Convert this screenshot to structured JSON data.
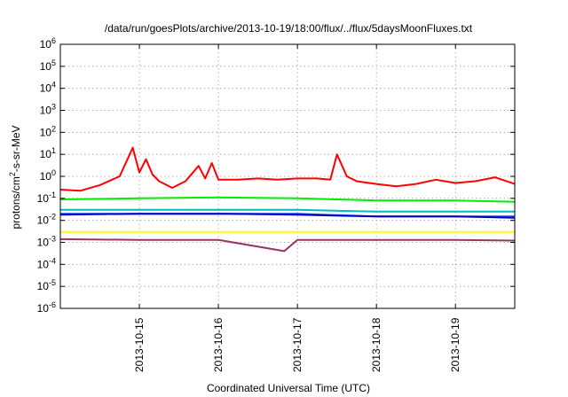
{
  "chart_data": {
    "type": "line",
    "title": "/data/run/goesPlots/archive/2013-10-19/18:00/flux/../flux/5daysMoonFluxes.txt",
    "xlabel": "Coordinated Universal Time (UTC)",
    "ylabel": "protons/cm²-s-sr-MeV",
    "y_scale": "log",
    "ylim": [
      1e-06,
      1000000.0
    ],
    "y_ticks": [
      {
        "base": "10",
        "exp": "-6"
      },
      {
        "base": "10",
        "exp": "-5"
      },
      {
        "base": "10",
        "exp": "-4"
      },
      {
        "base": "10",
        "exp": "-3"
      },
      {
        "base": "10",
        "exp": "-2"
      },
      {
        "base": "10",
        "exp": "-1"
      },
      {
        "base": "10",
        "exp": "0"
      },
      {
        "base": "10",
        "exp": "1"
      },
      {
        "base": "10",
        "exp": "2"
      },
      {
        "base": "10",
        "exp": "3"
      },
      {
        "base": "10",
        "exp": "4"
      },
      {
        "base": "10",
        "exp": "5"
      },
      {
        "base": "10",
        "exp": "6"
      }
    ],
    "xlim": [
      "2013-10-14 00:00",
      "2013-10-19 18:00"
    ],
    "x_ticks": [
      "2013-10-15",
      "2013-10-16",
      "2013-10-17",
      "2013-10-18",
      "2013-10-19"
    ],
    "grid": true,
    "legend": "none",
    "series": [
      {
        "color": "#ff0000",
        "x": [
          "2013-10-14 00:00",
          "2013-10-14 06:00",
          "2013-10-14 12:00",
          "2013-10-14 18:00",
          "2013-10-14 22:00",
          "2013-10-15 00:00",
          "2013-10-15 02:00",
          "2013-10-15 04:00",
          "2013-10-15 06:00",
          "2013-10-15 10:00",
          "2013-10-15 14:00",
          "2013-10-15 18:00",
          "2013-10-15 20:00",
          "2013-10-15 22:00",
          "2013-10-16 00:00",
          "2013-10-16 06:00",
          "2013-10-16 12:00",
          "2013-10-16 18:00",
          "2013-10-17 00:00",
          "2013-10-17 06:00",
          "2013-10-17 10:00",
          "2013-10-17 12:00",
          "2013-10-17 15:00",
          "2013-10-17 18:00",
          "2013-10-18 00:00",
          "2013-10-18 06:00",
          "2013-10-18 12:00",
          "2013-10-18 18:00",
          "2013-10-19 00:00",
          "2013-10-19 06:00",
          "2013-10-19 12:00",
          "2013-10-19 18:00"
        ],
        "y": [
          0.25,
          0.22,
          0.4,
          1.0,
          20,
          1.5,
          6,
          1.2,
          0.6,
          0.3,
          0.6,
          3,
          0.8,
          4,
          0.7,
          0.7,
          0.8,
          0.7,
          0.8,
          0.8,
          0.7,
          10,
          1.0,
          0.6,
          0.45,
          0.35,
          0.45,
          0.7,
          0.5,
          0.6,
          0.9,
          0.45
        ]
      },
      {
        "color": "#00ee00",
        "x": [
          "2013-10-14 00:00",
          "2013-10-15 00:00",
          "2013-10-16 00:00",
          "2013-10-17 00:00",
          "2013-10-18 00:00",
          "2013-10-19 00:00",
          "2013-10-19 18:00"
        ],
        "y": [
          0.09,
          0.1,
          0.11,
          0.1,
          0.08,
          0.08,
          0.07
        ]
      },
      {
        "color": "#00bbbb",
        "x": [
          "2013-10-14 00:00",
          "2013-10-15 00:00",
          "2013-10-16 00:00",
          "2013-10-17 00:00",
          "2013-10-18 00:00",
          "2013-10-19 00:00",
          "2013-10-19 18:00"
        ],
        "y": [
          0.03,
          0.03,
          0.03,
          0.03,
          0.025,
          0.025,
          0.025
        ]
      },
      {
        "color": "#0055ff",
        "x": [
          "2013-10-14 00:00",
          "2013-10-15 00:00",
          "2013-10-16 00:00",
          "2013-10-17 00:00",
          "2013-10-18 00:00",
          "2013-10-19 00:00",
          "2013-10-19 18:00"
        ],
        "y": [
          0.02,
          0.02,
          0.02,
          0.02,
          0.015,
          0.015,
          0.015
        ]
      },
      {
        "color": "#0000cc",
        "x": [
          "2013-10-14 00:00",
          "2013-10-15 00:00",
          "2013-10-16 00:00",
          "2013-10-17 00:00",
          "2013-10-18 00:00",
          "2013-10-19 00:00",
          "2013-10-19 18:00"
        ],
        "y": [
          0.018,
          0.02,
          0.02,
          0.018,
          0.015,
          0.015,
          0.013
        ]
      },
      {
        "color": "#ffff00",
        "x": [
          "2013-10-14 00:00",
          "2013-10-15 00:00",
          "2013-10-16 00:00",
          "2013-10-17 00:00",
          "2013-10-18 00:00",
          "2013-10-19 00:00",
          "2013-10-19 18:00"
        ],
        "y": [
          0.003,
          0.003,
          0.003,
          0.003,
          0.003,
          0.003,
          0.003
        ]
      },
      {
        "color": "#993366",
        "x": [
          "2013-10-14 00:00",
          "2013-10-15 00:00",
          "2013-10-16 00:00",
          "2013-10-16 20:00",
          "2013-10-17 00:00",
          "2013-10-18 00:00",
          "2013-10-19 00:00",
          "2013-10-19 18:00"
        ],
        "y": [
          0.0014,
          0.0013,
          0.0013,
          0.0004,
          0.0013,
          0.0013,
          0.0013,
          0.0012
        ]
      }
    ]
  }
}
